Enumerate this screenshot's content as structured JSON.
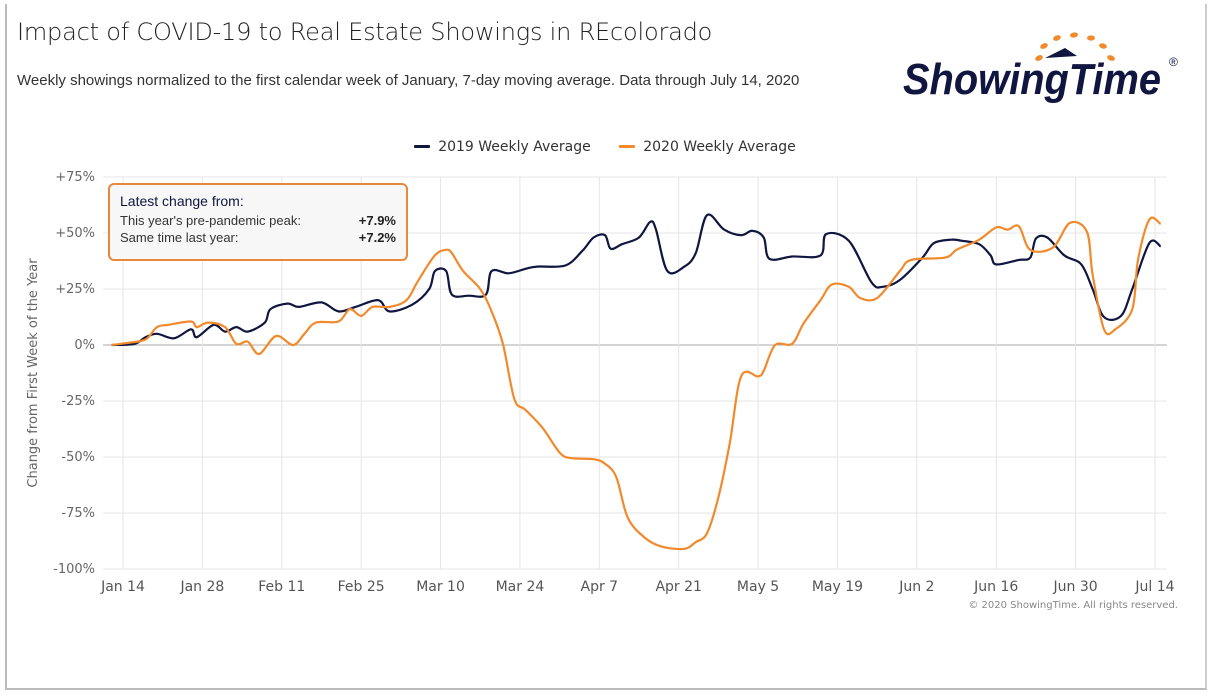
{
  "title": "Impact of COVID-19 to Real Estate Showings in REcolorado",
  "subtitle": "Weekly showings normalized to the first calendar week of January, 7-day moving average. Data through July 14, 2020",
  "logo": {
    "text": "ShowingTime",
    "registered": "®"
  },
  "copyright": "© 2020 ShowingTime. All rights reserved.",
  "tooltip": {
    "heading": "Latest change from:",
    "rows": [
      {
        "label": "This year's pre-pandemic peak:",
        "value": "+7.9%"
      },
      {
        "label": "Same time last year:",
        "value": "+7.2%"
      }
    ],
    "border_color": "#e8893a"
  },
  "chart_data": {
    "type": "line",
    "title": "",
    "xlabel": "",
    "ylabel": "Change from First Week of the Year",
    "ylim": [
      -100,
      75
    ],
    "xlim": [
      "2020-01-12",
      "2020-07-17"
    ],
    "grid": true,
    "legend_position": "top",
    "y_ticks": [
      {
        "value": 75,
        "label": "+75%"
      },
      {
        "value": 50,
        "label": "+50%"
      },
      {
        "value": 25,
        "label": "+25%"
      },
      {
        "value": 0,
        "label": "0%"
      },
      {
        "value": -25,
        "label": "-25%"
      },
      {
        "value": -50,
        "label": "-50%"
      },
      {
        "value": -75,
        "label": "-75%"
      },
      {
        "value": -100,
        "label": "-100%"
      }
    ],
    "x_ticks": [
      {
        "date": "2020-01-14",
        "label": "Jan 14"
      },
      {
        "date": "2020-01-28",
        "label": "Jan 28"
      },
      {
        "date": "2020-02-11",
        "label": "Feb 11"
      },
      {
        "date": "2020-02-25",
        "label": "Feb 25"
      },
      {
        "date": "2020-03-10",
        "label": "Mar 10"
      },
      {
        "date": "2020-03-24",
        "label": "Mar 24"
      },
      {
        "date": "2020-04-07",
        "label": "Apr 7"
      },
      {
        "date": "2020-04-21",
        "label": "Apr 21"
      },
      {
        "date": "2020-05-05",
        "label": "May 5"
      },
      {
        "date": "2020-05-19",
        "label": "May 19"
      },
      {
        "date": "2020-06-02",
        "label": "Jun 2"
      },
      {
        "date": "2020-06-16",
        "label": "Jun 16"
      },
      {
        "date": "2020-06-30",
        "label": "Jun 30"
      },
      {
        "date": "2020-07-14",
        "label": "Jul 14"
      }
    ],
    "series": [
      {
        "name": "2019 Weekly Average",
        "color": "#10163f",
        "points": [
          [
            "2020-01-12",
            0
          ],
          [
            "2020-01-16",
            0.5
          ],
          [
            "2020-01-18",
            3.5
          ],
          [
            "2020-01-20",
            5
          ],
          [
            "2020-01-23",
            3
          ],
          [
            "2020-01-26",
            7
          ],
          [
            "2020-01-27",
            3.5
          ],
          [
            "2020-01-30",
            9
          ],
          [
            "2020-02-01",
            6
          ],
          [
            "2020-02-03",
            8
          ],
          [
            "2020-02-05",
            6
          ],
          [
            "2020-02-08",
            10
          ],
          [
            "2020-02-09",
            16
          ],
          [
            "2020-02-12",
            18.5
          ],
          [
            "2020-02-14",
            17
          ],
          [
            "2020-02-18",
            19
          ],
          [
            "2020-02-21",
            15
          ],
          [
            "2020-02-24",
            17
          ],
          [
            "2020-02-28",
            20
          ],
          [
            "2020-03-01",
            15
          ],
          [
            "2020-03-05",
            18
          ],
          [
            "2020-03-08",
            25
          ],
          [
            "2020-03-09",
            33
          ],
          [
            "2020-03-11",
            33
          ],
          [
            "2020-03-12",
            22.5
          ],
          [
            "2020-03-15",
            22
          ],
          [
            "2020-03-18",
            22.5
          ],
          [
            "2020-03-19",
            33
          ],
          [
            "2020-03-22",
            32
          ],
          [
            "2020-03-25",
            34
          ],
          [
            "2020-03-27",
            35
          ],
          [
            "2020-04-01",
            35.5
          ],
          [
            "2020-04-04",
            42
          ],
          [
            "2020-04-06",
            48
          ],
          [
            "2020-04-08",
            49
          ],
          [
            "2020-04-09",
            43
          ],
          [
            "2020-04-11",
            45
          ],
          [
            "2020-04-14",
            48
          ],
          [
            "2020-04-16",
            55
          ],
          [
            "2020-04-17",
            51.5
          ],
          [
            "2020-04-19",
            33
          ],
          [
            "2020-04-22",
            35
          ],
          [
            "2020-04-24",
            41
          ],
          [
            "2020-04-26",
            58
          ],
          [
            "2020-04-29",
            51.5
          ],
          [
            "2020-05-02",
            49
          ],
          [
            "2020-05-04",
            51
          ],
          [
            "2020-05-06",
            48
          ],
          [
            "2020-05-07",
            38.5
          ],
          [
            "2020-05-11",
            39.5
          ],
          [
            "2020-05-16",
            40
          ],
          [
            "2020-05-17",
            49.5
          ],
          [
            "2020-05-21",
            46.5
          ],
          [
            "2020-05-25",
            28
          ],
          [
            "2020-05-27",
            26
          ],
          [
            "2020-05-30",
            29
          ],
          [
            "2020-06-03",
            39
          ],
          [
            "2020-06-05",
            45.5
          ],
          [
            "2020-06-08",
            47
          ],
          [
            "2020-06-10",
            46.5
          ],
          [
            "2020-06-13",
            45
          ],
          [
            "2020-06-15",
            40
          ],
          [
            "2020-06-16",
            36
          ],
          [
            "2020-06-20",
            38
          ],
          [
            "2020-06-22",
            39
          ],
          [
            "2020-06-23",
            47.5
          ],
          [
            "2020-06-25",
            48
          ],
          [
            "2020-06-28",
            40
          ],
          [
            "2020-07-01",
            36
          ],
          [
            "2020-07-03",
            25
          ],
          [
            "2020-07-05",
            12.5
          ],
          [
            "2020-07-08",
            13
          ],
          [
            "2020-07-10",
            25
          ],
          [
            "2020-07-13",
            45.5
          ],
          [
            "2020-07-15",
            44
          ]
        ]
      },
      {
        "name": "2020 Weekly Average",
        "color": "#f08a2c",
        "points": [
          [
            "2020-01-12",
            0
          ],
          [
            "2020-01-15",
            1
          ],
          [
            "2020-01-18",
            2.5
          ],
          [
            "2020-01-20",
            8
          ],
          [
            "2020-01-22",
            9
          ],
          [
            "2020-01-26",
            10.5
          ],
          [
            "2020-01-27",
            8
          ],
          [
            "2020-01-29",
            10
          ],
          [
            "2020-02-01",
            8
          ],
          [
            "2020-02-03",
            0.5
          ],
          [
            "2020-02-05",
            1.5
          ],
          [
            "2020-02-07",
            -4
          ],
          [
            "2020-02-10",
            4
          ],
          [
            "2020-02-13",
            0
          ],
          [
            "2020-02-15",
            5
          ],
          [
            "2020-02-17",
            10
          ],
          [
            "2020-02-21",
            10.5
          ],
          [
            "2020-02-23",
            16
          ],
          [
            "2020-02-25",
            13
          ],
          [
            "2020-02-27",
            17
          ],
          [
            "2020-03-01",
            17
          ],
          [
            "2020-03-04",
            20
          ],
          [
            "2020-03-06",
            28.5
          ],
          [
            "2020-03-09",
            40
          ],
          [
            "2020-03-11",
            42.5
          ],
          [
            "2020-03-12",
            41
          ],
          [
            "2020-03-14",
            33
          ],
          [
            "2020-03-17",
            25
          ],
          [
            "2020-03-19",
            15
          ],
          [
            "2020-03-21",
            0.5
          ],
          [
            "2020-03-23",
            -24
          ],
          [
            "2020-03-25",
            -29
          ],
          [
            "2020-03-28",
            -37
          ],
          [
            "2020-03-31",
            -48
          ],
          [
            "2020-04-02",
            -50.5
          ],
          [
            "2020-04-06",
            -51
          ],
          [
            "2020-04-08",
            -53
          ],
          [
            "2020-04-10",
            -59
          ],
          [
            "2020-04-12",
            -77
          ],
          [
            "2020-04-15",
            -86
          ],
          [
            "2020-04-18",
            -90
          ],
          [
            "2020-04-22",
            -91
          ],
          [
            "2020-04-24",
            -88
          ],
          [
            "2020-04-26",
            -84
          ],
          [
            "2020-04-28",
            -68
          ],
          [
            "2020-04-30",
            -44
          ],
          [
            "2020-05-02",
            -14
          ],
          [
            "2020-05-05",
            -14
          ],
          [
            "2020-05-06",
            -11.5
          ],
          [
            "2020-05-08",
            0
          ],
          [
            "2020-05-11",
            0.5
          ],
          [
            "2020-05-13",
            9.5
          ],
          [
            "2020-05-16",
            20
          ],
          [
            "2020-05-18",
            27
          ],
          [
            "2020-05-21",
            26
          ],
          [
            "2020-05-23",
            21
          ],
          [
            "2020-05-26",
            21
          ],
          [
            "2020-05-30",
            33
          ],
          [
            "2020-06-01",
            38
          ],
          [
            "2020-06-07",
            39
          ],
          [
            "2020-06-09",
            42.5
          ],
          [
            "2020-06-13",
            47
          ],
          [
            "2020-06-16",
            52.5
          ],
          [
            "2020-06-18",
            51.5
          ],
          [
            "2020-06-20",
            53
          ],
          [
            "2020-06-22",
            42.5
          ],
          [
            "2020-06-26",
            43.5
          ],
          [
            "2020-06-29",
            54.5
          ],
          [
            "2020-07-02",
            50.5
          ],
          [
            "2020-07-03",
            31.5
          ],
          [
            "2020-07-05",
            7
          ],
          [
            "2020-07-07",
            7
          ],
          [
            "2020-07-10",
            16
          ],
          [
            "2020-07-11",
            38
          ],
          [
            "2020-07-13",
            56
          ],
          [
            "2020-07-15",
            54
          ]
        ]
      }
    ]
  }
}
